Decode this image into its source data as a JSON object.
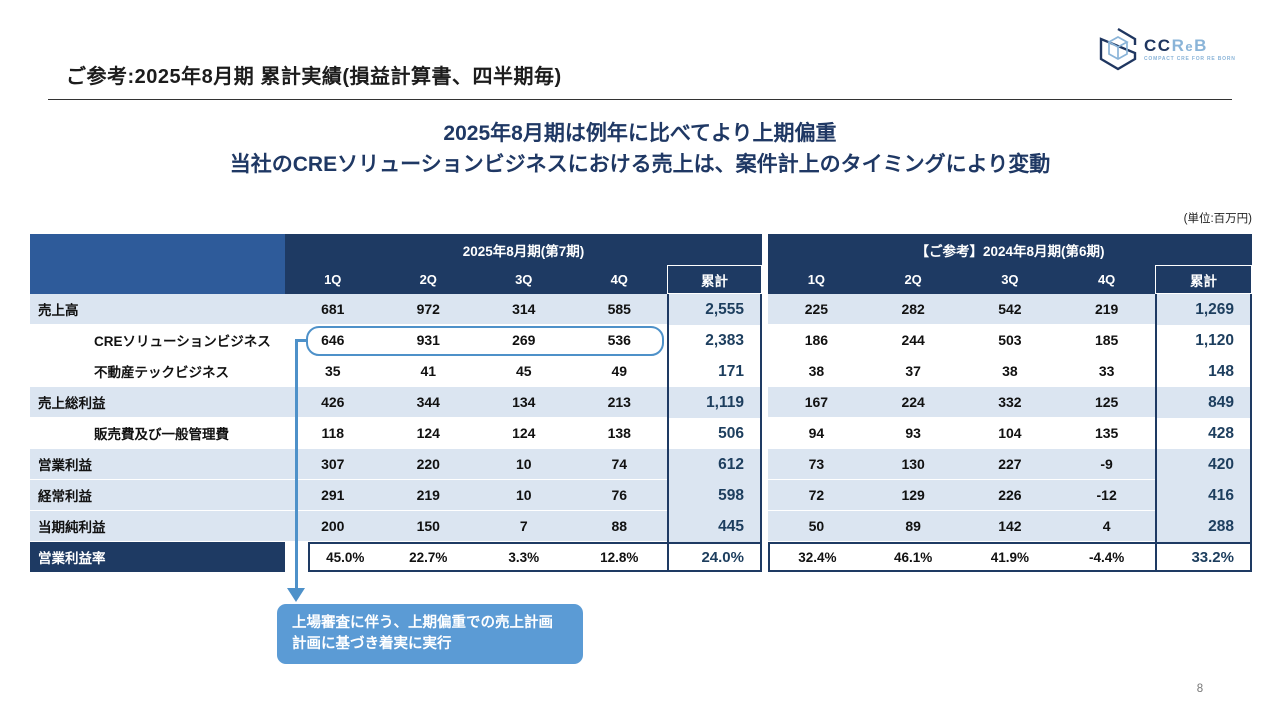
{
  "slide": {
    "title": "ご参考:2025年8月期 累計実績(損益計算書、四半期毎)",
    "subtitle_line1": "2025年8月期は例年に比べてより上期偏重",
    "subtitle_line2": "当社のCREソリューションビジネスにおける売上は、案件計上のタイミングにより変動",
    "unit_note": "(単位:百万円)",
    "page_number": "8"
  },
  "logo": {
    "text_dark": "CC",
    "text_light_r": "R",
    "text_light_e": "e",
    "text_light_b": "B",
    "tagline": "COMPACT CRE FOR RE BORN"
  },
  "callout": {
    "line1": "上場審査に伴う、上期偏重での売上計画",
    "line2": "計画に基づき着実に実行"
  },
  "colors": {
    "header_navy": "#1e3a63",
    "corner_blue": "#2e5b9a",
    "shade_blue": "#dbe5f1",
    "accent_steel": "#4e91c9",
    "callout_blue": "#5b9bd5",
    "subtitle_navy": "#1f3864",
    "total_text": "#1d3e5e"
  },
  "chart_data": {
    "type": "table",
    "left_title": "2025年8月期(第7期)",
    "right_title": "【ご参考】2024年8月期(第6期)",
    "quarter_headers": [
      "1Q",
      "2Q",
      "3Q",
      "4Q"
    ],
    "total_header": "累計",
    "rows": [
      {
        "label": "売上高",
        "indent": false,
        "shade": true,
        "highlight": false,
        "fy2025": [
          "681",
          "972",
          "314",
          "585"
        ],
        "fy2025_total": "2,555",
        "fy2024": [
          "225",
          "282",
          "542",
          "219"
        ],
        "fy2024_total": "1,269"
      },
      {
        "label": "CREソリューションビジネス",
        "indent": true,
        "shade": false,
        "highlight": true,
        "fy2025": [
          "646",
          "931",
          "269",
          "536"
        ],
        "fy2025_total": "2,383",
        "fy2024": [
          "186",
          "244",
          "503",
          "185"
        ],
        "fy2024_total": "1,120"
      },
      {
        "label": "不動産テックビジネス",
        "indent": true,
        "shade": false,
        "highlight": false,
        "fy2025": [
          "35",
          "41",
          "45",
          "49"
        ],
        "fy2025_total": "171",
        "fy2024": [
          "38",
          "37",
          "38",
          "33"
        ],
        "fy2024_total": "148"
      },
      {
        "label": "売上総利益",
        "indent": false,
        "shade": true,
        "highlight": false,
        "fy2025": [
          "426",
          "344",
          "134",
          "213"
        ],
        "fy2025_total": "1,119",
        "fy2024": [
          "167",
          "224",
          "332",
          "125"
        ],
        "fy2024_total": "849"
      },
      {
        "label": "販売費及び一般管理費",
        "indent": true,
        "shade": false,
        "highlight": false,
        "fy2025": [
          "118",
          "124",
          "124",
          "138"
        ],
        "fy2025_total": "506",
        "fy2024": [
          "94",
          "93",
          "104",
          "135"
        ],
        "fy2024_total": "428"
      },
      {
        "label": "営業利益",
        "indent": false,
        "shade": true,
        "highlight": false,
        "fy2025": [
          "307",
          "220",
          "10",
          "74"
        ],
        "fy2025_total": "612",
        "fy2024": [
          "73",
          "130",
          "227",
          "-9"
        ],
        "fy2024_total": "420"
      },
      {
        "label": "経常利益",
        "indent": false,
        "shade": true,
        "highlight": false,
        "fy2025": [
          "291",
          "219",
          "10",
          "76"
        ],
        "fy2025_total": "598",
        "fy2024": [
          "72",
          "129",
          "226",
          "-12"
        ],
        "fy2024_total": "416"
      },
      {
        "label": "当期純利益",
        "indent": false,
        "shade": true,
        "highlight": false,
        "fy2025": [
          "200",
          "150",
          "7",
          "88"
        ],
        "fy2025_total": "445",
        "fy2024": [
          "50",
          "89",
          "142",
          "4"
        ],
        "fy2024_total": "288"
      }
    ],
    "ratio_row": {
      "label": "営業利益率",
      "fy2025": [
        "45.0%",
        "22.7%",
        "3.3%",
        "12.8%"
      ],
      "fy2025_total": "24.0%",
      "fy2024": [
        "32.4%",
        "46.1%",
        "41.9%",
        "-4.4%"
      ],
      "fy2024_total": "33.2%"
    }
  }
}
